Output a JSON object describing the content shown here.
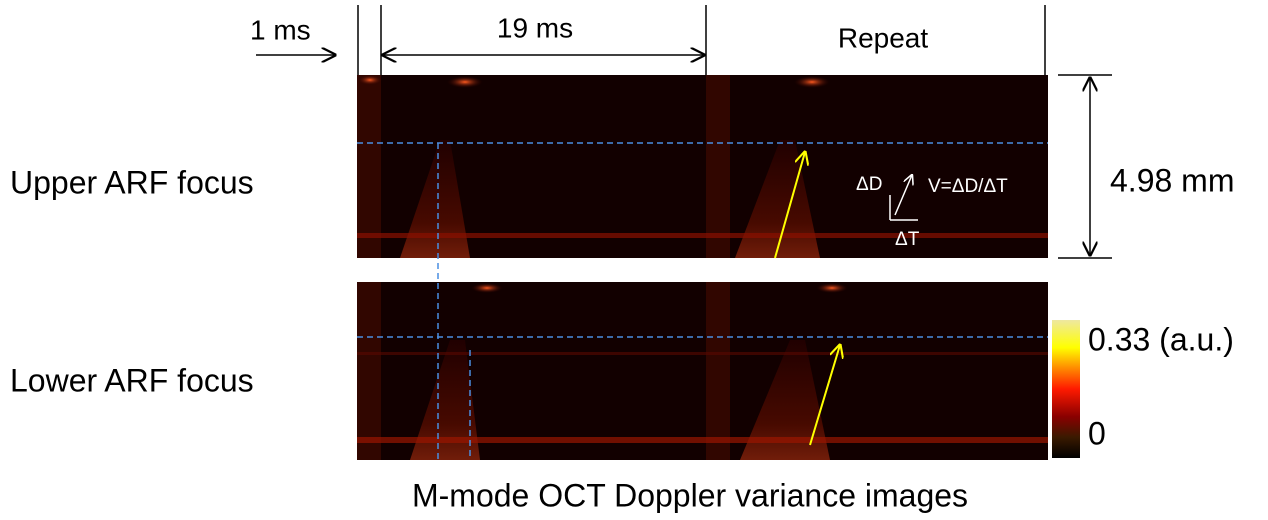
{
  "timing": {
    "pre": "1 ms",
    "interval": "19 ms",
    "repeat": "Repeat"
  },
  "panels": [
    {
      "label": "Upper ARF focus"
    },
    {
      "label": "Lower ARF focus"
    }
  ],
  "depth": "4.98 mm",
  "inset": {
    "dd": "ΔD",
    "velocity": "V=ΔD/ΔT",
    "dt": "ΔT"
  },
  "colorbar": {
    "max": "0.33 (a.u.)",
    "min": "0"
  },
  "caption": "M-mode OCT Doppler variance images"
}
